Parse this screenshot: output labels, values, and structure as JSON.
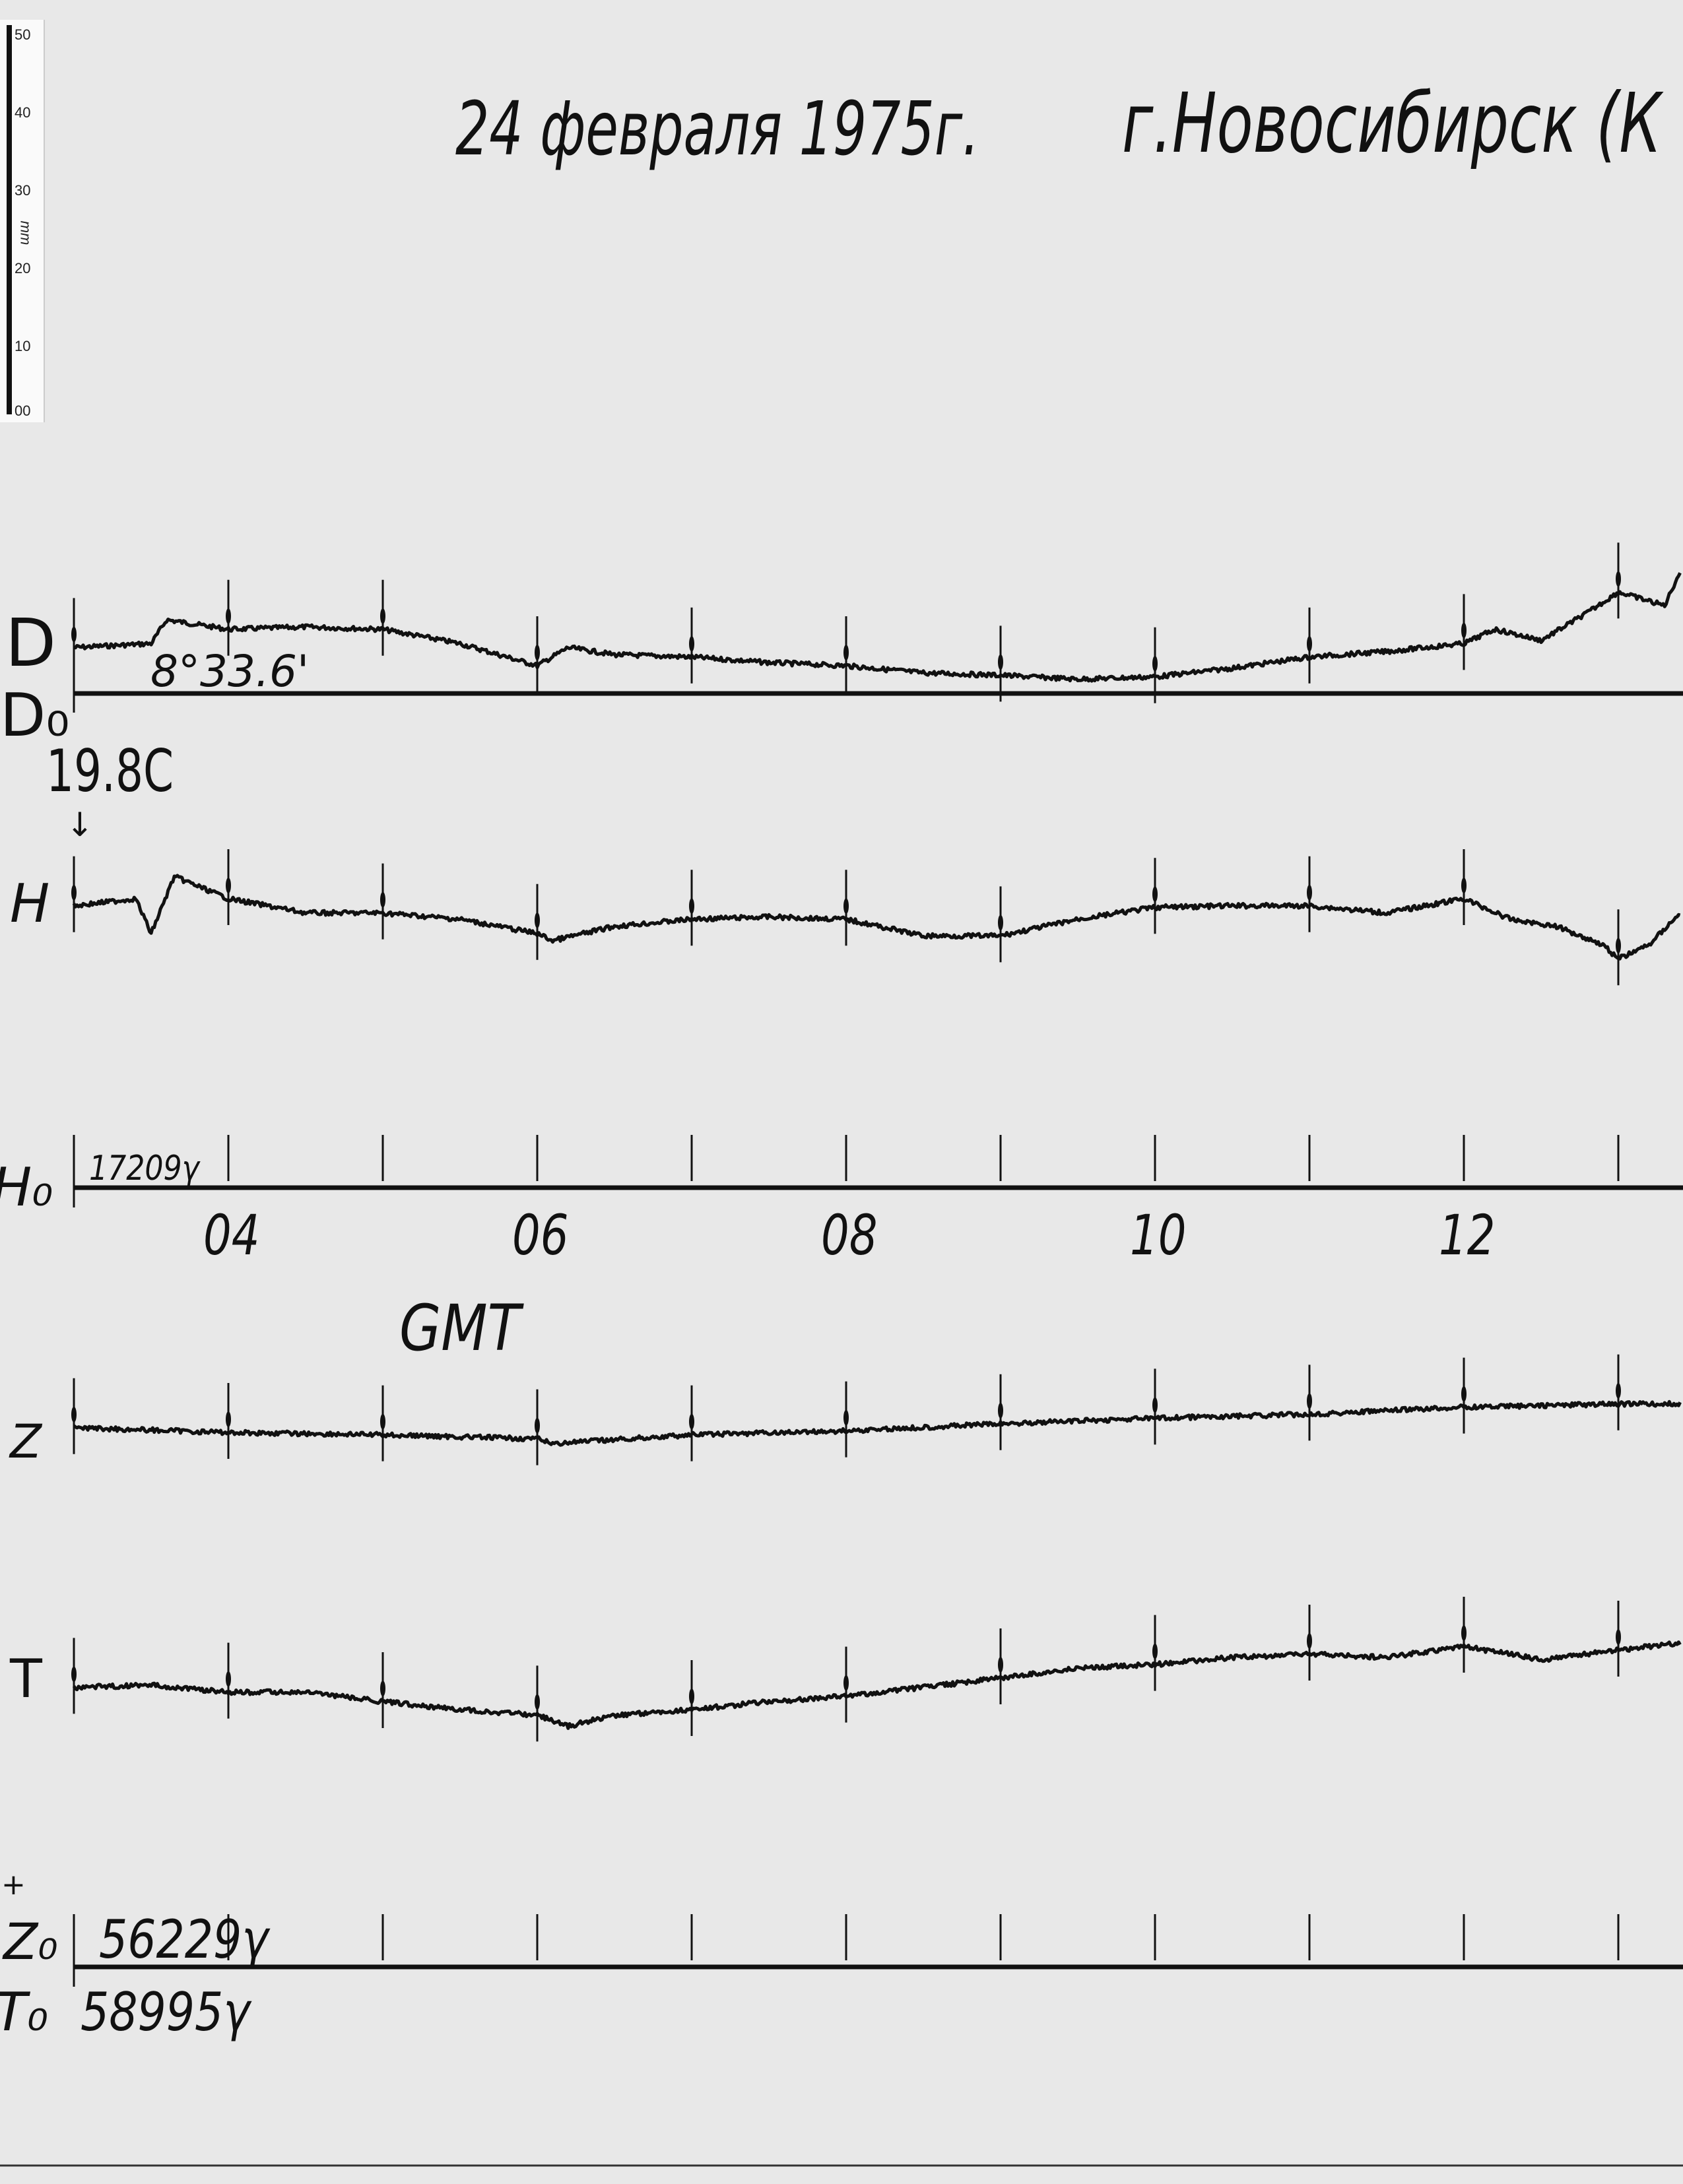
{
  "title": {
    "date": "24 февраля 1975г.",
    "place": "г.Новосибирск (К"
  },
  "scale_bar": {
    "unit": "mm",
    "ticks": [
      "50",
      "40",
      "30",
      "20",
      "10",
      "00"
    ]
  },
  "labels": {
    "D": "D",
    "D0": "D₀",
    "D0_value": "8°33.6'",
    "temperature": "19.8C",
    "H": "H",
    "H0": "H₀",
    "H0_value": "17209γ",
    "Z": "Z",
    "T": "T",
    "plus": "+",
    "Z0": "Z₀",
    "Z0_value": "56229γ",
    "T0": "T₀",
    "T0_value": "58995γ",
    "time_axis": "GMT"
  },
  "chart_data": {
    "type": "line",
    "xlabel": "GMT",
    "xlim": [
      3,
      13.4
    ],
    "x_tick_labels": [
      "04",
      "06",
      "08",
      "10",
      "12"
    ],
    "x_tick_values": [
      4,
      6,
      8,
      10,
      12
    ],
    "hour_marks": [
      3,
      4,
      5,
      6,
      7,
      8,
      9,
      10,
      11,
      12,
      13
    ],
    "grid": false,
    "trace_color": "#111111",
    "series": [
      {
        "name": "D",
        "baseline": "D₀",
        "x": [
          3.0,
          3.5,
          3.6,
          4.0,
          4.5,
          5.0,
          5.5,
          6.0,
          6.2,
          6.5,
          7.0,
          7.5,
          8.0,
          8.5,
          9.0,
          9.5,
          10.0,
          10.5,
          11.0,
          11.5,
          12.0,
          12.2,
          12.5,
          12.8,
          13.0,
          13.3,
          13.4
        ],
        "y": [
          5.8,
          6.3,
          9.3,
          8.1,
          8.4,
          8.1,
          6.3,
          3.5,
          5.8,
          4.9,
          4.6,
          3.9,
          3.5,
          2.6,
          2.3,
          1.8,
          2.1,
          3.2,
          4.6,
          5.3,
          6.3,
          8.1,
          6.7,
          10.2,
          12.8,
          11.1,
          15.4
        ]
      },
      {
        "name": "H",
        "baseline": "H₀",
        "x": [
          3.0,
          3.4,
          3.5,
          3.65,
          4.0,
          4.5,
          5.0,
          5.5,
          6.0,
          6.1,
          6.5,
          7.0,
          7.5,
          8.0,
          8.5,
          9.0,
          9.5,
          10.0,
          10.5,
          11.0,
          11.5,
          12.0,
          12.3,
          12.6,
          12.9,
          13.0,
          13.2,
          13.4
        ],
        "y": [
          35.6,
          36.5,
          32.1,
          39.3,
          36.5,
          34.7,
          34.7,
          33.9,
          32.1,
          31.2,
          33.0,
          33.9,
          34.2,
          33.9,
          31.8,
          31.8,
          33.9,
          35.4,
          35.6,
          35.6,
          34.7,
          36.5,
          33.9,
          33.0,
          30.7,
          28.9,
          30.7,
          34.7
        ]
      },
      {
        "name": "Z",
        "baseline": "Z₀",
        "x": [
          3.0,
          4.0,
          5.0,
          6.0,
          6.1,
          7.0,
          8.0,
          9.0,
          10.0,
          11.0,
          12.0,
          13.0,
          13.4
        ],
        "y": [
          68.1,
          67.5,
          67.2,
          66.7,
          66.1,
          67.2,
          67.7,
          68.6,
          69.3,
          69.8,
          70.7,
          71.1,
          71.1
        ]
      },
      {
        "name": "T",
        "baseline": "T₀",
        "x": [
          3.0,
          3.5,
          4.0,
          4.5,
          5.0,
          5.5,
          6.0,
          6.2,
          6.5,
          7.0,
          7.5,
          8.0,
          8.5,
          9.0,
          9.5,
          10.0,
          10.5,
          11.0,
          11.5,
          12.0,
          12.5,
          13.0,
          13.4
        ],
        "y": [
          35.3,
          35.6,
          34.7,
          34.7,
          33.5,
          32.5,
          31.8,
          30.4,
          31.8,
          32.5,
          33.5,
          34.2,
          35.3,
          36.5,
          37.7,
          38.2,
          39.1,
          39.5,
          39.1,
          40.5,
          38.8,
          40.0,
          40.9
        ]
      }
    ]
  }
}
